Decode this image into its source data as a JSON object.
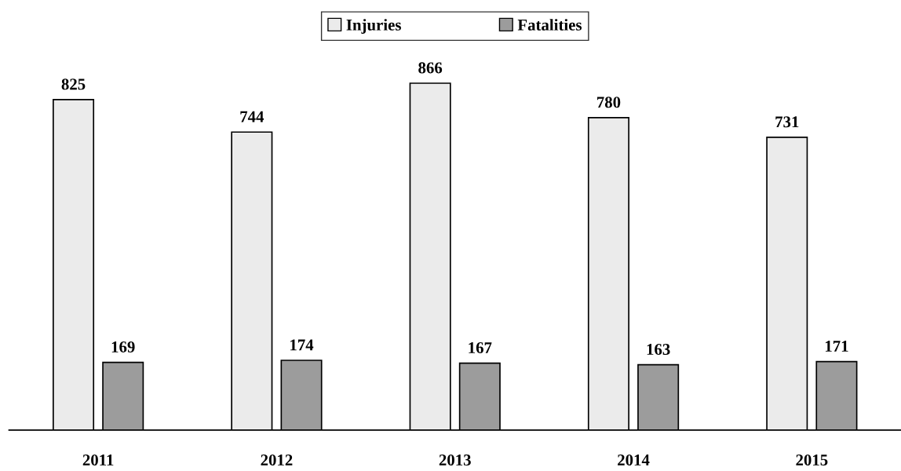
{
  "chart_data": {
    "type": "bar",
    "categories": [
      "2011",
      "2012",
      "2013",
      "2014",
      "2015"
    ],
    "series": [
      {
        "name": "Injuries",
        "color": "#ebebeb",
        "values": [
          825,
          744,
          866,
          780,
          731
        ]
      },
      {
        "name": "Fatalities",
        "color": "#9c9c9c",
        "values": [
          169,
          174,
          167,
          163,
          171
        ]
      }
    ],
    "data_labels": true,
    "legend": "top",
    "grid": false
  }
}
